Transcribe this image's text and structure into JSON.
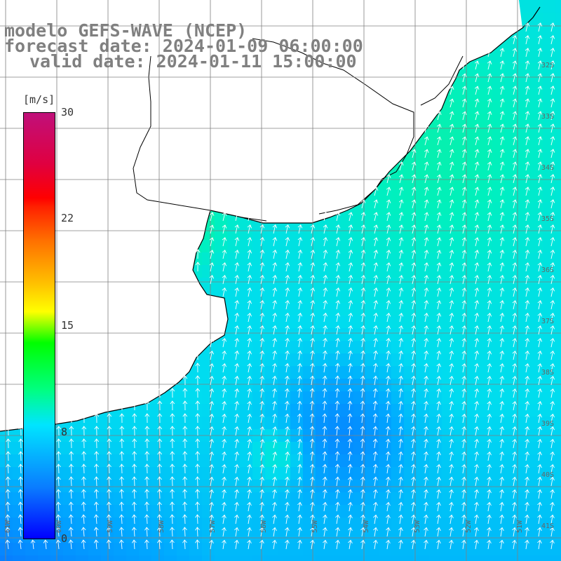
{
  "title": {
    "line1": "modelo GEFS-WAVE (NCEP)",
    "line2": "forecast date: 2024-01-09 06:00:00",
    "line3": "valid date: 2024-01-11 15:00:00"
  },
  "colorbar": {
    "unit": "[m/s]",
    "ticks": [
      "30",
      "22",
      "15",
      "8",
      "0"
    ],
    "min": 0,
    "max": 30
  },
  "map": {
    "lon_labels": [
      "61W",
      "60W",
      "59W",
      "58W",
      "57W",
      "56W",
      "55W",
      "54W",
      "53W",
      "52W",
      "51W"
    ],
    "lat_labels": [
      "32S",
      "33S",
      "34S",
      "35S",
      "36S",
      "37S",
      "38S",
      "39S",
      "40S",
      "41S"
    ],
    "arrow_color": "#ffffff",
    "land_color": "#ffffff",
    "coast_color": "#000000",
    "grid_color": "#808080"
  }
}
